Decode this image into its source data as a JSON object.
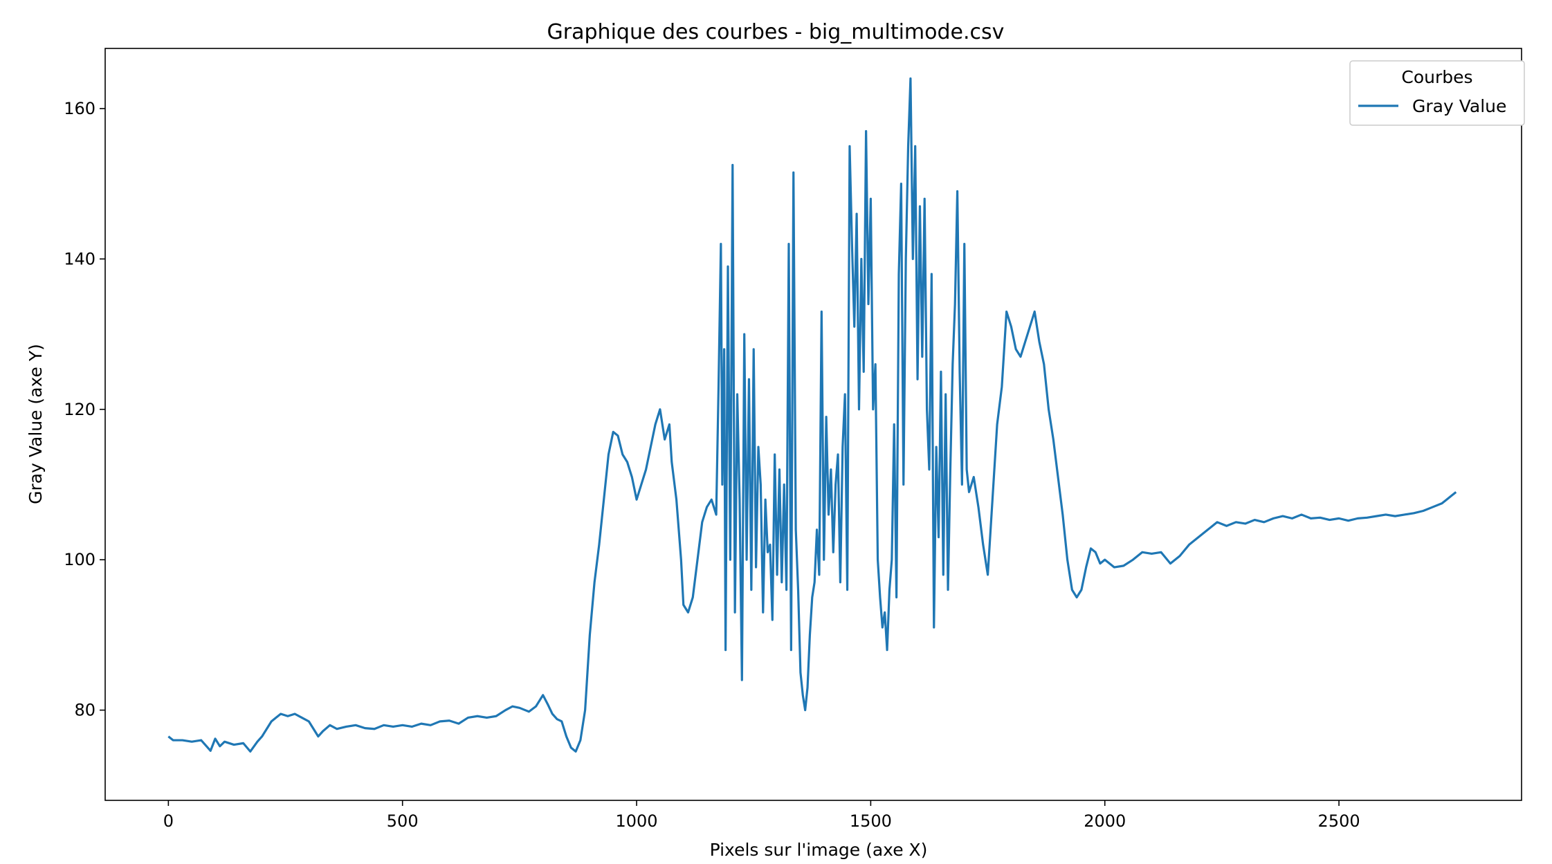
{
  "chart_data": {
    "type": "line",
    "title": "Graphique des courbes - big_multimode.csv",
    "xlabel": "Pixels sur l'image (axe X)",
    "ylabel": "Gray Value (axe Y)",
    "xlim": [
      -135,
      2890
    ],
    "ylim": [
      68,
      168
    ],
    "xticks": [
      0,
      500,
      1000,
      1500,
      2000,
      2500
    ],
    "yticks": [
      80,
      100,
      120,
      140,
      160
    ],
    "grid": false,
    "legend": {
      "title": "Courbes",
      "position": "top-right"
    },
    "series": [
      {
        "name": "Gray Value",
        "color": "#1f77b4",
        "points": [
          [
            0,
            76.5
          ],
          [
            10,
            76
          ],
          [
            30,
            76
          ],
          [
            50,
            75.8
          ],
          [
            70,
            76
          ],
          [
            80,
            75.3
          ],
          [
            90,
            74.6
          ],
          [
            100,
            76.2
          ],
          [
            110,
            75.2
          ],
          [
            120,
            75.8
          ],
          [
            140,
            75.4
          ],
          [
            160,
            75.6
          ],
          [
            175,
            74.5
          ],
          [
            190,
            75.8
          ],
          [
            200,
            76.5
          ],
          [
            210,
            77.5
          ],
          [
            220,
            78.5
          ],
          [
            230,
            79
          ],
          [
            240,
            79.5
          ],
          [
            255,
            79.2
          ],
          [
            270,
            79.5
          ],
          [
            285,
            79
          ],
          [
            300,
            78.5
          ],
          [
            310,
            77.5
          ],
          [
            320,
            76.5
          ],
          [
            330,
            77.2
          ],
          [
            345,
            78
          ],
          [
            360,
            77.5
          ],
          [
            380,
            77.8
          ],
          [
            400,
            78
          ],
          [
            420,
            77.6
          ],
          [
            440,
            77.5
          ],
          [
            460,
            78
          ],
          [
            480,
            77.8
          ],
          [
            500,
            78
          ],
          [
            520,
            77.8
          ],
          [
            540,
            78.2
          ],
          [
            560,
            78
          ],
          [
            580,
            78.5
          ],
          [
            600,
            78.6
          ],
          [
            620,
            78.2
          ],
          [
            640,
            79
          ],
          [
            660,
            79.2
          ],
          [
            680,
            79
          ],
          [
            700,
            79.2
          ],
          [
            720,
            80
          ],
          [
            735,
            80.5
          ],
          [
            750,
            80.3
          ],
          [
            770,
            79.8
          ],
          [
            785,
            80.5
          ],
          [
            800,
            82
          ],
          [
            810,
            80.8
          ],
          [
            820,
            79.5
          ],
          [
            830,
            78.8
          ],
          [
            840,
            78.5
          ],
          [
            850,
            76.5
          ],
          [
            860,
            75
          ],
          [
            870,
            74.5
          ],
          [
            880,
            76
          ],
          [
            890,
            80
          ],
          [
            900,
            90
          ],
          [
            910,
            97
          ],
          [
            920,
            102
          ],
          [
            930,
            108
          ],
          [
            940,
            114
          ],
          [
            950,
            117
          ],
          [
            960,
            116.5
          ],
          [
            970,
            114
          ],
          [
            980,
            113
          ],
          [
            990,
            111
          ],
          [
            1000,
            108
          ],
          [
            1010,
            110
          ],
          [
            1020,
            112
          ],
          [
            1030,
            115
          ],
          [
            1040,
            118
          ],
          [
            1050,
            120
          ],
          [
            1060,
            116
          ],
          [
            1070,
            118
          ],
          [
            1075,
            113
          ],
          [
            1085,
            108
          ],
          [
            1095,
            100
          ],
          [
            1100,
            94
          ],
          [
            1110,
            93
          ],
          [
            1120,
            95
          ],
          [
            1130,
            100
          ],
          [
            1140,
            105
          ],
          [
            1150,
            107
          ],
          [
            1160,
            108
          ],
          [
            1170,
            106
          ],
          [
            1175,
            123
          ],
          [
            1180,
            142
          ],
          [
            1183,
            110
          ],
          [
            1187,
            128
          ],
          [
            1190,
            88
          ],
          [
            1195,
            139
          ],
          [
            1200,
            100
          ],
          [
            1205,
            152.5
          ],
          [
            1210,
            93
          ],
          [
            1215,
            122
          ],
          [
            1220,
            108
          ],
          [
            1225,
            84
          ],
          [
            1230,
            130
          ],
          [
            1235,
            100
          ],
          [
            1240,
            124
          ],
          [
            1245,
            96
          ],
          [
            1250,
            128
          ],
          [
            1255,
            99
          ],
          [
            1260,
            115
          ],
          [
            1265,
            110
          ],
          [
            1270,
            93
          ],
          [
            1275,
            108
          ],
          [
            1280,
            101
          ],
          [
            1285,
            102
          ],
          [
            1290,
            92
          ],
          [
            1295,
            114
          ],
          [
            1300,
            98
          ],
          [
            1305,
            112
          ],
          [
            1310,
            97
          ],
          [
            1315,
            110
          ],
          [
            1320,
            96
          ],
          [
            1325,
            142
          ],
          [
            1330,
            88
          ],
          [
            1335,
            151.5
          ],
          [
            1340,
            104
          ],
          [
            1345,
            96
          ],
          [
            1350,
            85
          ],
          [
            1355,
            82
          ],
          [
            1360,
            80
          ],
          [
            1365,
            83
          ],
          [
            1370,
            90
          ],
          [
            1375,
            95
          ],
          [
            1380,
            97
          ],
          [
            1385,
            104
          ],
          [
            1390,
            98
          ],
          [
            1395,
            133
          ],
          [
            1400,
            100
          ],
          [
            1405,
            119
          ],
          [
            1410,
            106
          ],
          [
            1415,
            112
          ],
          [
            1420,
            101
          ],
          [
            1425,
            110
          ],
          [
            1430,
            114
          ],
          [
            1435,
            97
          ],
          [
            1440,
            115
          ],
          [
            1445,
            122
          ],
          [
            1450,
            96
          ],
          [
            1455,
            155
          ],
          [
            1460,
            142
          ],
          [
            1465,
            131
          ],
          [
            1470,
            146
          ],
          [
            1475,
            120
          ],
          [
            1480,
            140
          ],
          [
            1485,
            125
          ],
          [
            1490,
            157
          ],
          [
            1495,
            134
          ],
          [
            1500,
            148
          ],
          [
            1505,
            120
          ],
          [
            1510,
            126
          ],
          [
            1515,
            100
          ],
          [
            1520,
            95
          ],
          [
            1525,
            91
          ],
          [
            1530,
            93
          ],
          [
            1535,
            88
          ],
          [
            1540,
            96
          ],
          [
            1545,
            100
          ],
          [
            1550,
            118
          ],
          [
            1555,
            95
          ],
          [
            1560,
            138
          ],
          [
            1565,
            150
          ],
          [
            1570,
            110
          ],
          [
            1575,
            140
          ],
          [
            1580,
            155
          ],
          [
            1585,
            164
          ],
          [
            1590,
            140
          ],
          [
            1595,
            155
          ],
          [
            1600,
            124
          ],
          [
            1605,
            147
          ],
          [
            1610,
            127
          ],
          [
            1615,
            148
          ],
          [
            1620,
            120
          ],
          [
            1625,
            112
          ],
          [
            1630,
            138
          ],
          [
            1635,
            91
          ],
          [
            1640,
            115
          ],
          [
            1645,
            103
          ],
          [
            1650,
            125
          ],
          [
            1655,
            98
          ],
          [
            1660,
            122
          ],
          [
            1665,
            96
          ],
          [
            1670,
            112
          ],
          [
            1675,
            126
          ],
          [
            1680,
            134
          ],
          [
            1685,
            149
          ],
          [
            1690,
            125
          ],
          [
            1695,
            110
          ],
          [
            1700,
            142
          ],
          [
            1705,
            112
          ],
          [
            1710,
            109
          ],
          [
            1720,
            111
          ],
          [
            1730,
            107
          ],
          [
            1740,
            102
          ],
          [
            1750,
            98
          ],
          [
            1760,
            108
          ],
          [
            1770,
            118
          ],
          [
            1780,
            123
          ],
          [
            1790,
            133
          ],
          [
            1800,
            131
          ],
          [
            1810,
            128
          ],
          [
            1820,
            127
          ],
          [
            1830,
            129
          ],
          [
            1840,
            131
          ],
          [
            1850,
            133
          ],
          [
            1860,
            129
          ],
          [
            1870,
            126
          ],
          [
            1880,
            120
          ],
          [
            1890,
            116
          ],
          [
            1900,
            111
          ],
          [
            1910,
            106
          ],
          [
            1920,
            100
          ],
          [
            1930,
            96
          ],
          [
            1940,
            95
          ],
          [
            1950,
            96
          ],
          [
            1960,
            99
          ],
          [
            1970,
            101.5
          ],
          [
            1980,
            101
          ],
          [
            1990,
            99.5
          ],
          [
            2000,
            100
          ],
          [
            2020,
            99
          ],
          [
            2040,
            99.2
          ],
          [
            2060,
            100
          ],
          [
            2080,
            101
          ],
          [
            2100,
            100.8
          ],
          [
            2120,
            101
          ],
          [
            2140,
            99.5
          ],
          [
            2160,
            100.5
          ],
          [
            2180,
            102
          ],
          [
            2200,
            103
          ],
          [
            2220,
            104
          ],
          [
            2240,
            105
          ],
          [
            2260,
            104.5
          ],
          [
            2280,
            105
          ],
          [
            2300,
            104.8
          ],
          [
            2320,
            105.3
          ],
          [
            2340,
            105
          ],
          [
            2360,
            105.5
          ],
          [
            2380,
            105.8
          ],
          [
            2400,
            105.5
          ],
          [
            2420,
            106
          ],
          [
            2440,
            105.5
          ],
          [
            2460,
            105.6
          ],
          [
            2480,
            105.3
          ],
          [
            2500,
            105.5
          ],
          [
            2520,
            105.2
          ],
          [
            2540,
            105.5
          ],
          [
            2560,
            105.6
          ],
          [
            2580,
            105.8
          ],
          [
            2600,
            106
          ],
          [
            2620,
            105.8
          ],
          [
            2640,
            106
          ],
          [
            2660,
            106.2
          ],
          [
            2680,
            106.5
          ],
          [
            2700,
            107
          ],
          [
            2720,
            107.5
          ],
          [
            2730,
            108
          ],
          [
            2740,
            108.5
          ],
          [
            2750,
            109
          ]
        ]
      }
    ]
  }
}
